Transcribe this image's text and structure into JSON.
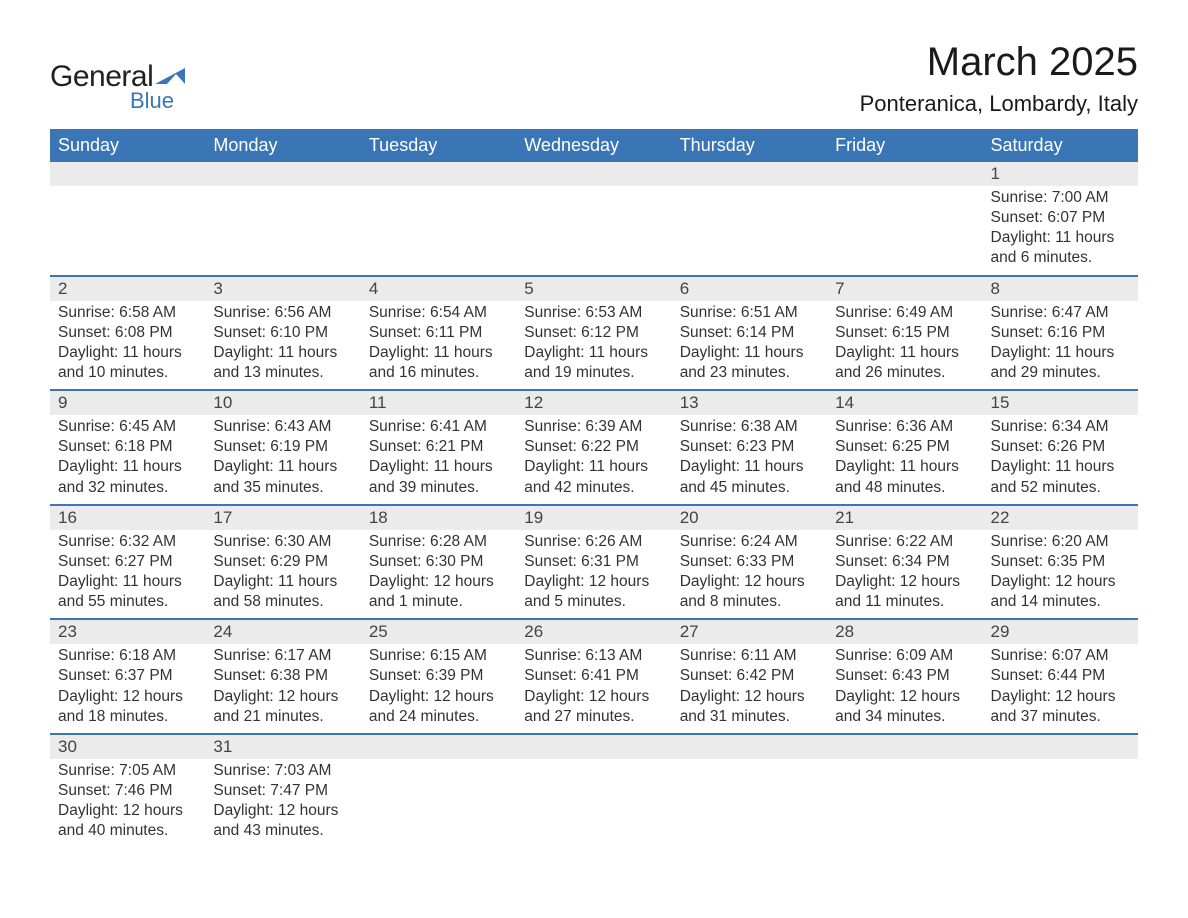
{
  "logo": {
    "word1": "General",
    "word2": "Blue",
    "tri_color": "#3a76b5"
  },
  "title": "March 2025",
  "location": "Ponteranica, Lombardy, Italy",
  "header_bg": "#3a76b5",
  "header_fg": "#ffffff",
  "daynum_bg": "#ebebeb",
  "row_border": "#3a76b5",
  "weekdays": [
    "Sunday",
    "Monday",
    "Tuesday",
    "Wednesday",
    "Thursday",
    "Friday",
    "Saturday"
  ],
  "weeks": [
    [
      null,
      null,
      null,
      null,
      null,
      null,
      {
        "n": "1",
        "sr": "7:00 AM",
        "ss": "6:07 PM",
        "dl": "11 hours and 6 minutes."
      }
    ],
    [
      {
        "n": "2",
        "sr": "6:58 AM",
        "ss": "6:08 PM",
        "dl": "11 hours and 10 minutes."
      },
      {
        "n": "3",
        "sr": "6:56 AM",
        "ss": "6:10 PM",
        "dl": "11 hours and 13 minutes."
      },
      {
        "n": "4",
        "sr": "6:54 AM",
        "ss": "6:11 PM",
        "dl": "11 hours and 16 minutes."
      },
      {
        "n": "5",
        "sr": "6:53 AM",
        "ss": "6:12 PM",
        "dl": "11 hours and 19 minutes."
      },
      {
        "n": "6",
        "sr": "6:51 AM",
        "ss": "6:14 PM",
        "dl": "11 hours and 23 minutes."
      },
      {
        "n": "7",
        "sr": "6:49 AM",
        "ss": "6:15 PM",
        "dl": "11 hours and 26 minutes."
      },
      {
        "n": "8",
        "sr": "6:47 AM",
        "ss": "6:16 PM",
        "dl": "11 hours and 29 minutes."
      }
    ],
    [
      {
        "n": "9",
        "sr": "6:45 AM",
        "ss": "6:18 PM",
        "dl": "11 hours and 32 minutes."
      },
      {
        "n": "10",
        "sr": "6:43 AM",
        "ss": "6:19 PM",
        "dl": "11 hours and 35 minutes."
      },
      {
        "n": "11",
        "sr": "6:41 AM",
        "ss": "6:21 PM",
        "dl": "11 hours and 39 minutes."
      },
      {
        "n": "12",
        "sr": "6:39 AM",
        "ss": "6:22 PM",
        "dl": "11 hours and 42 minutes."
      },
      {
        "n": "13",
        "sr": "6:38 AM",
        "ss": "6:23 PM",
        "dl": "11 hours and 45 minutes."
      },
      {
        "n": "14",
        "sr": "6:36 AM",
        "ss": "6:25 PM",
        "dl": "11 hours and 48 minutes."
      },
      {
        "n": "15",
        "sr": "6:34 AM",
        "ss": "6:26 PM",
        "dl": "11 hours and 52 minutes."
      }
    ],
    [
      {
        "n": "16",
        "sr": "6:32 AM",
        "ss": "6:27 PM",
        "dl": "11 hours and 55 minutes."
      },
      {
        "n": "17",
        "sr": "6:30 AM",
        "ss": "6:29 PM",
        "dl": "11 hours and 58 minutes."
      },
      {
        "n": "18",
        "sr": "6:28 AM",
        "ss": "6:30 PM",
        "dl": "12 hours and 1 minute."
      },
      {
        "n": "19",
        "sr": "6:26 AM",
        "ss": "6:31 PM",
        "dl": "12 hours and 5 minutes."
      },
      {
        "n": "20",
        "sr": "6:24 AM",
        "ss": "6:33 PM",
        "dl": "12 hours and 8 minutes."
      },
      {
        "n": "21",
        "sr": "6:22 AM",
        "ss": "6:34 PM",
        "dl": "12 hours and 11 minutes."
      },
      {
        "n": "22",
        "sr": "6:20 AM",
        "ss": "6:35 PM",
        "dl": "12 hours and 14 minutes."
      }
    ],
    [
      {
        "n": "23",
        "sr": "6:18 AM",
        "ss": "6:37 PM",
        "dl": "12 hours and 18 minutes."
      },
      {
        "n": "24",
        "sr": "6:17 AM",
        "ss": "6:38 PM",
        "dl": "12 hours and 21 minutes."
      },
      {
        "n": "25",
        "sr": "6:15 AM",
        "ss": "6:39 PM",
        "dl": "12 hours and 24 minutes."
      },
      {
        "n": "26",
        "sr": "6:13 AM",
        "ss": "6:41 PM",
        "dl": "12 hours and 27 minutes."
      },
      {
        "n": "27",
        "sr": "6:11 AM",
        "ss": "6:42 PM",
        "dl": "12 hours and 31 minutes."
      },
      {
        "n": "28",
        "sr": "6:09 AM",
        "ss": "6:43 PM",
        "dl": "12 hours and 34 minutes."
      },
      {
        "n": "29",
        "sr": "6:07 AM",
        "ss": "6:44 PM",
        "dl": "12 hours and 37 minutes."
      }
    ],
    [
      {
        "n": "30",
        "sr": "7:05 AM",
        "ss": "7:46 PM",
        "dl": "12 hours and 40 minutes."
      },
      {
        "n": "31",
        "sr": "7:03 AM",
        "ss": "7:47 PM",
        "dl": "12 hours and 43 minutes."
      },
      null,
      null,
      null,
      null,
      null
    ]
  ],
  "labels": {
    "sunrise": "Sunrise: ",
    "sunset": "Sunset: ",
    "daylight": "Daylight: "
  }
}
